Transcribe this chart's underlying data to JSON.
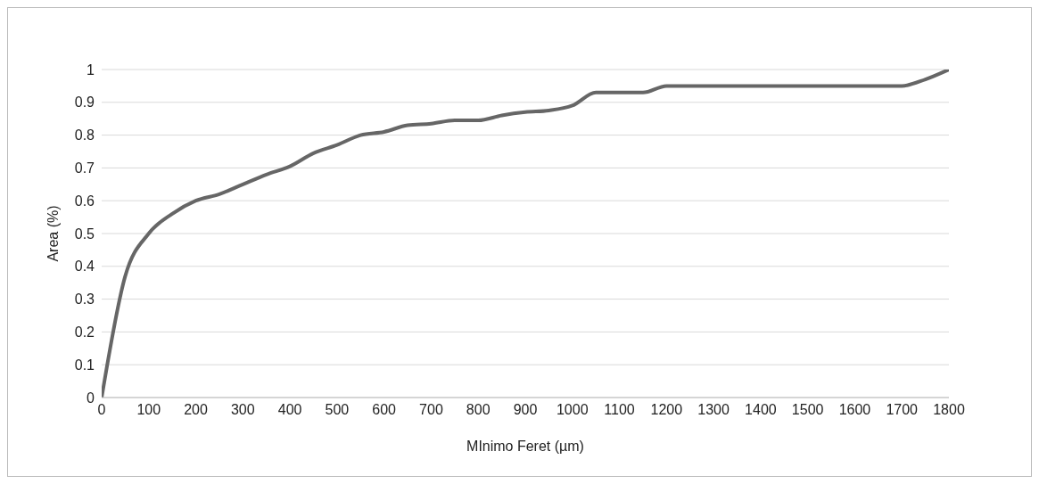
{
  "chart_data": {
    "type": "line",
    "xlabel": "MInimo Feret (µm)",
    "ylabel": "Area (%)",
    "x": [
      0,
      50,
      100,
      150,
      200,
      250,
      300,
      350,
      400,
      450,
      500,
      550,
      600,
      650,
      700,
      750,
      800,
      850,
      900,
      950,
      1000,
      1050,
      1100,
      1150,
      1200,
      1250,
      1300,
      1350,
      1400,
      1450,
      1500,
      1550,
      1600,
      1650,
      1700,
      1750,
      1800
    ],
    "series": [
      {
        "color": "#666666",
        "values": [
          0,
          0.37,
          0.5,
          0.56,
          0.6,
          0.62,
          0.65,
          0.68,
          0.705,
          0.745,
          0.77,
          0.8,
          0.81,
          0.83,
          0.835,
          0.845,
          0.845,
          0.86,
          0.87,
          0.875,
          0.89,
          0.93,
          0.93,
          0.93,
          0.95,
          0.95,
          0.95,
          0.95,
          0.95,
          0.95,
          0.95,
          0.95,
          0.95,
          0.95,
          0.95,
          0.97,
          1
        ]
      }
    ],
    "xlim": [
      0,
      1800
    ],
    "xticks": [
      0,
      100,
      200,
      300,
      400,
      500,
      600,
      700,
      800,
      900,
      1000,
      1100,
      1200,
      1300,
      1400,
      1500,
      1600,
      1700,
      1800
    ],
    "ylim": [
      0,
      1
    ],
    "yticks": [
      0,
      0.1,
      0.2,
      0.3,
      0.4,
      0.5,
      0.6,
      0.7,
      0.8,
      0.9,
      1
    ],
    "grid": "y",
    "legend": false,
    "marker": "none",
    "line_style": "solid"
  }
}
